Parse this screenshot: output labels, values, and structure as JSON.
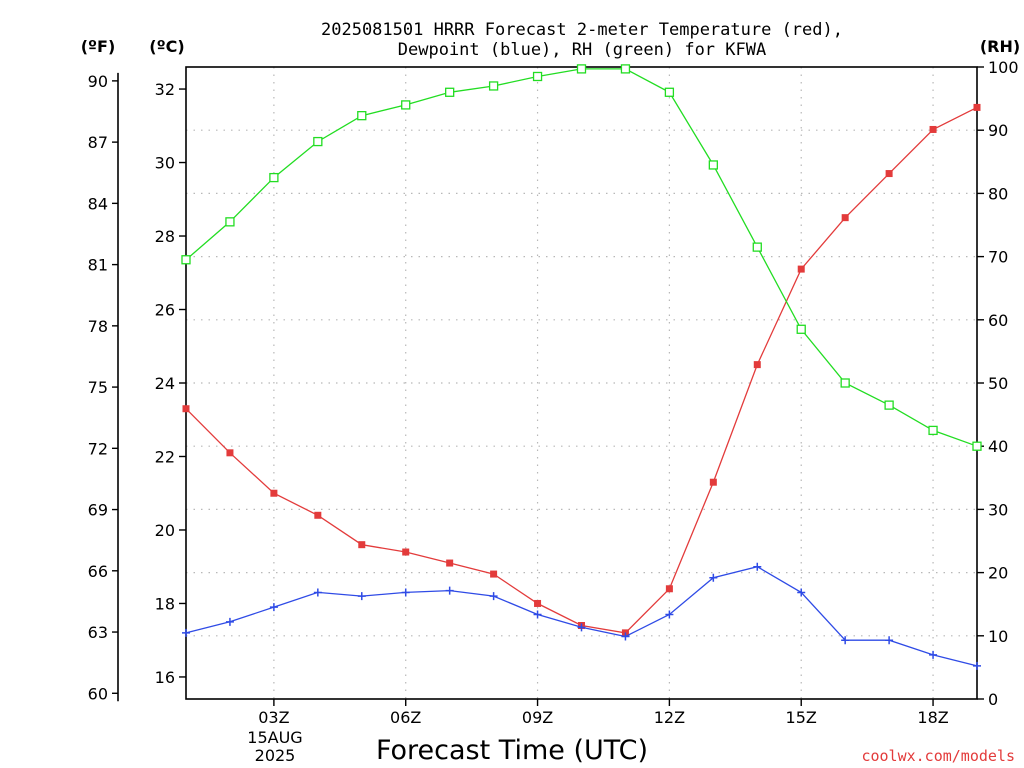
{
  "chart_data": {
    "type": "line",
    "title": "2025081501 HRRR Forecast 2-meter Temperature (red),",
    "subtitle": "Dewpoint (blue), RH (green) for KFWA",
    "xlabel": "Forecast Time (UTC)",
    "credit": "coolwx.com/models",
    "units": {
      "fahrenheit": "(ºF)",
      "celsius": "(ºC)",
      "rh": "(RH)"
    },
    "x_hours": [
      1,
      2,
      3,
      4,
      5,
      6,
      7,
      8,
      9,
      10,
      11,
      12,
      13,
      14,
      15,
      16,
      17,
      18,
      19
    ],
    "xlim": [
      1,
      19
    ],
    "x_ticks": [
      {
        "hour": 3,
        "label": "03Z"
      },
      {
        "hour": 6,
        "label": "06Z"
      },
      {
        "hour": 9,
        "label": "09Z"
      },
      {
        "hour": 12,
        "label": "12Z"
      },
      {
        "hour": 15,
        "label": "15Z"
      },
      {
        "hour": 18,
        "label": "18Z"
      }
    ],
    "date_label": [
      "15AUG",
      "2025"
    ],
    "y_celsius": {
      "lim": [
        15.4,
        32.6
      ],
      "ticks": [
        "16",
        "18",
        "20",
        "22",
        "24",
        "26",
        "28",
        "30",
        "32"
      ]
    },
    "y_fahrenheit": {
      "ticks": [
        "60",
        "63",
        "66",
        "69",
        "72",
        "75",
        "78",
        "81",
        "84",
        "87",
        "90"
      ]
    },
    "y_rh": {
      "lim": [
        0,
        100
      ],
      "ticks": [
        "0",
        "10",
        "20",
        "30",
        "40",
        "50",
        "60",
        "70",
        "80",
        "90",
        "100"
      ]
    },
    "grid": true,
    "series": [
      {
        "name": "Temperature",
        "color": "#e33b3b",
        "axis": "celsius",
        "marker": "filled-square",
        "values": [
          23.3,
          22.1,
          21.0,
          20.4,
          19.6,
          19.4,
          19.1,
          18.8,
          18.0,
          17.4,
          17.2,
          18.4,
          21.3,
          24.5,
          27.1,
          28.5,
          29.7,
          30.9,
          31.5
        ]
      },
      {
        "name": "Dewpoint",
        "color": "#2f4be6",
        "axis": "celsius",
        "marker": "plus",
        "values": [
          17.2,
          17.5,
          17.9,
          18.3,
          18.2,
          18.3,
          18.35,
          18.2,
          17.7,
          17.35,
          17.1,
          17.7,
          18.7,
          19.0,
          18.3,
          17.0,
          17.0,
          16.6,
          16.3
        ]
      },
      {
        "name": "RH",
        "color": "#22dd22",
        "axis": "rh",
        "marker": "open-square",
        "values": [
          69.5,
          75.5,
          82.5,
          88.2,
          92.3,
          94.0,
          96.0,
          97.0,
          98.5,
          99.7,
          99.7,
          96.0,
          84.5,
          71.5,
          58.5,
          50.0,
          46.5,
          42.5,
          40.0
        ]
      }
    ]
  }
}
